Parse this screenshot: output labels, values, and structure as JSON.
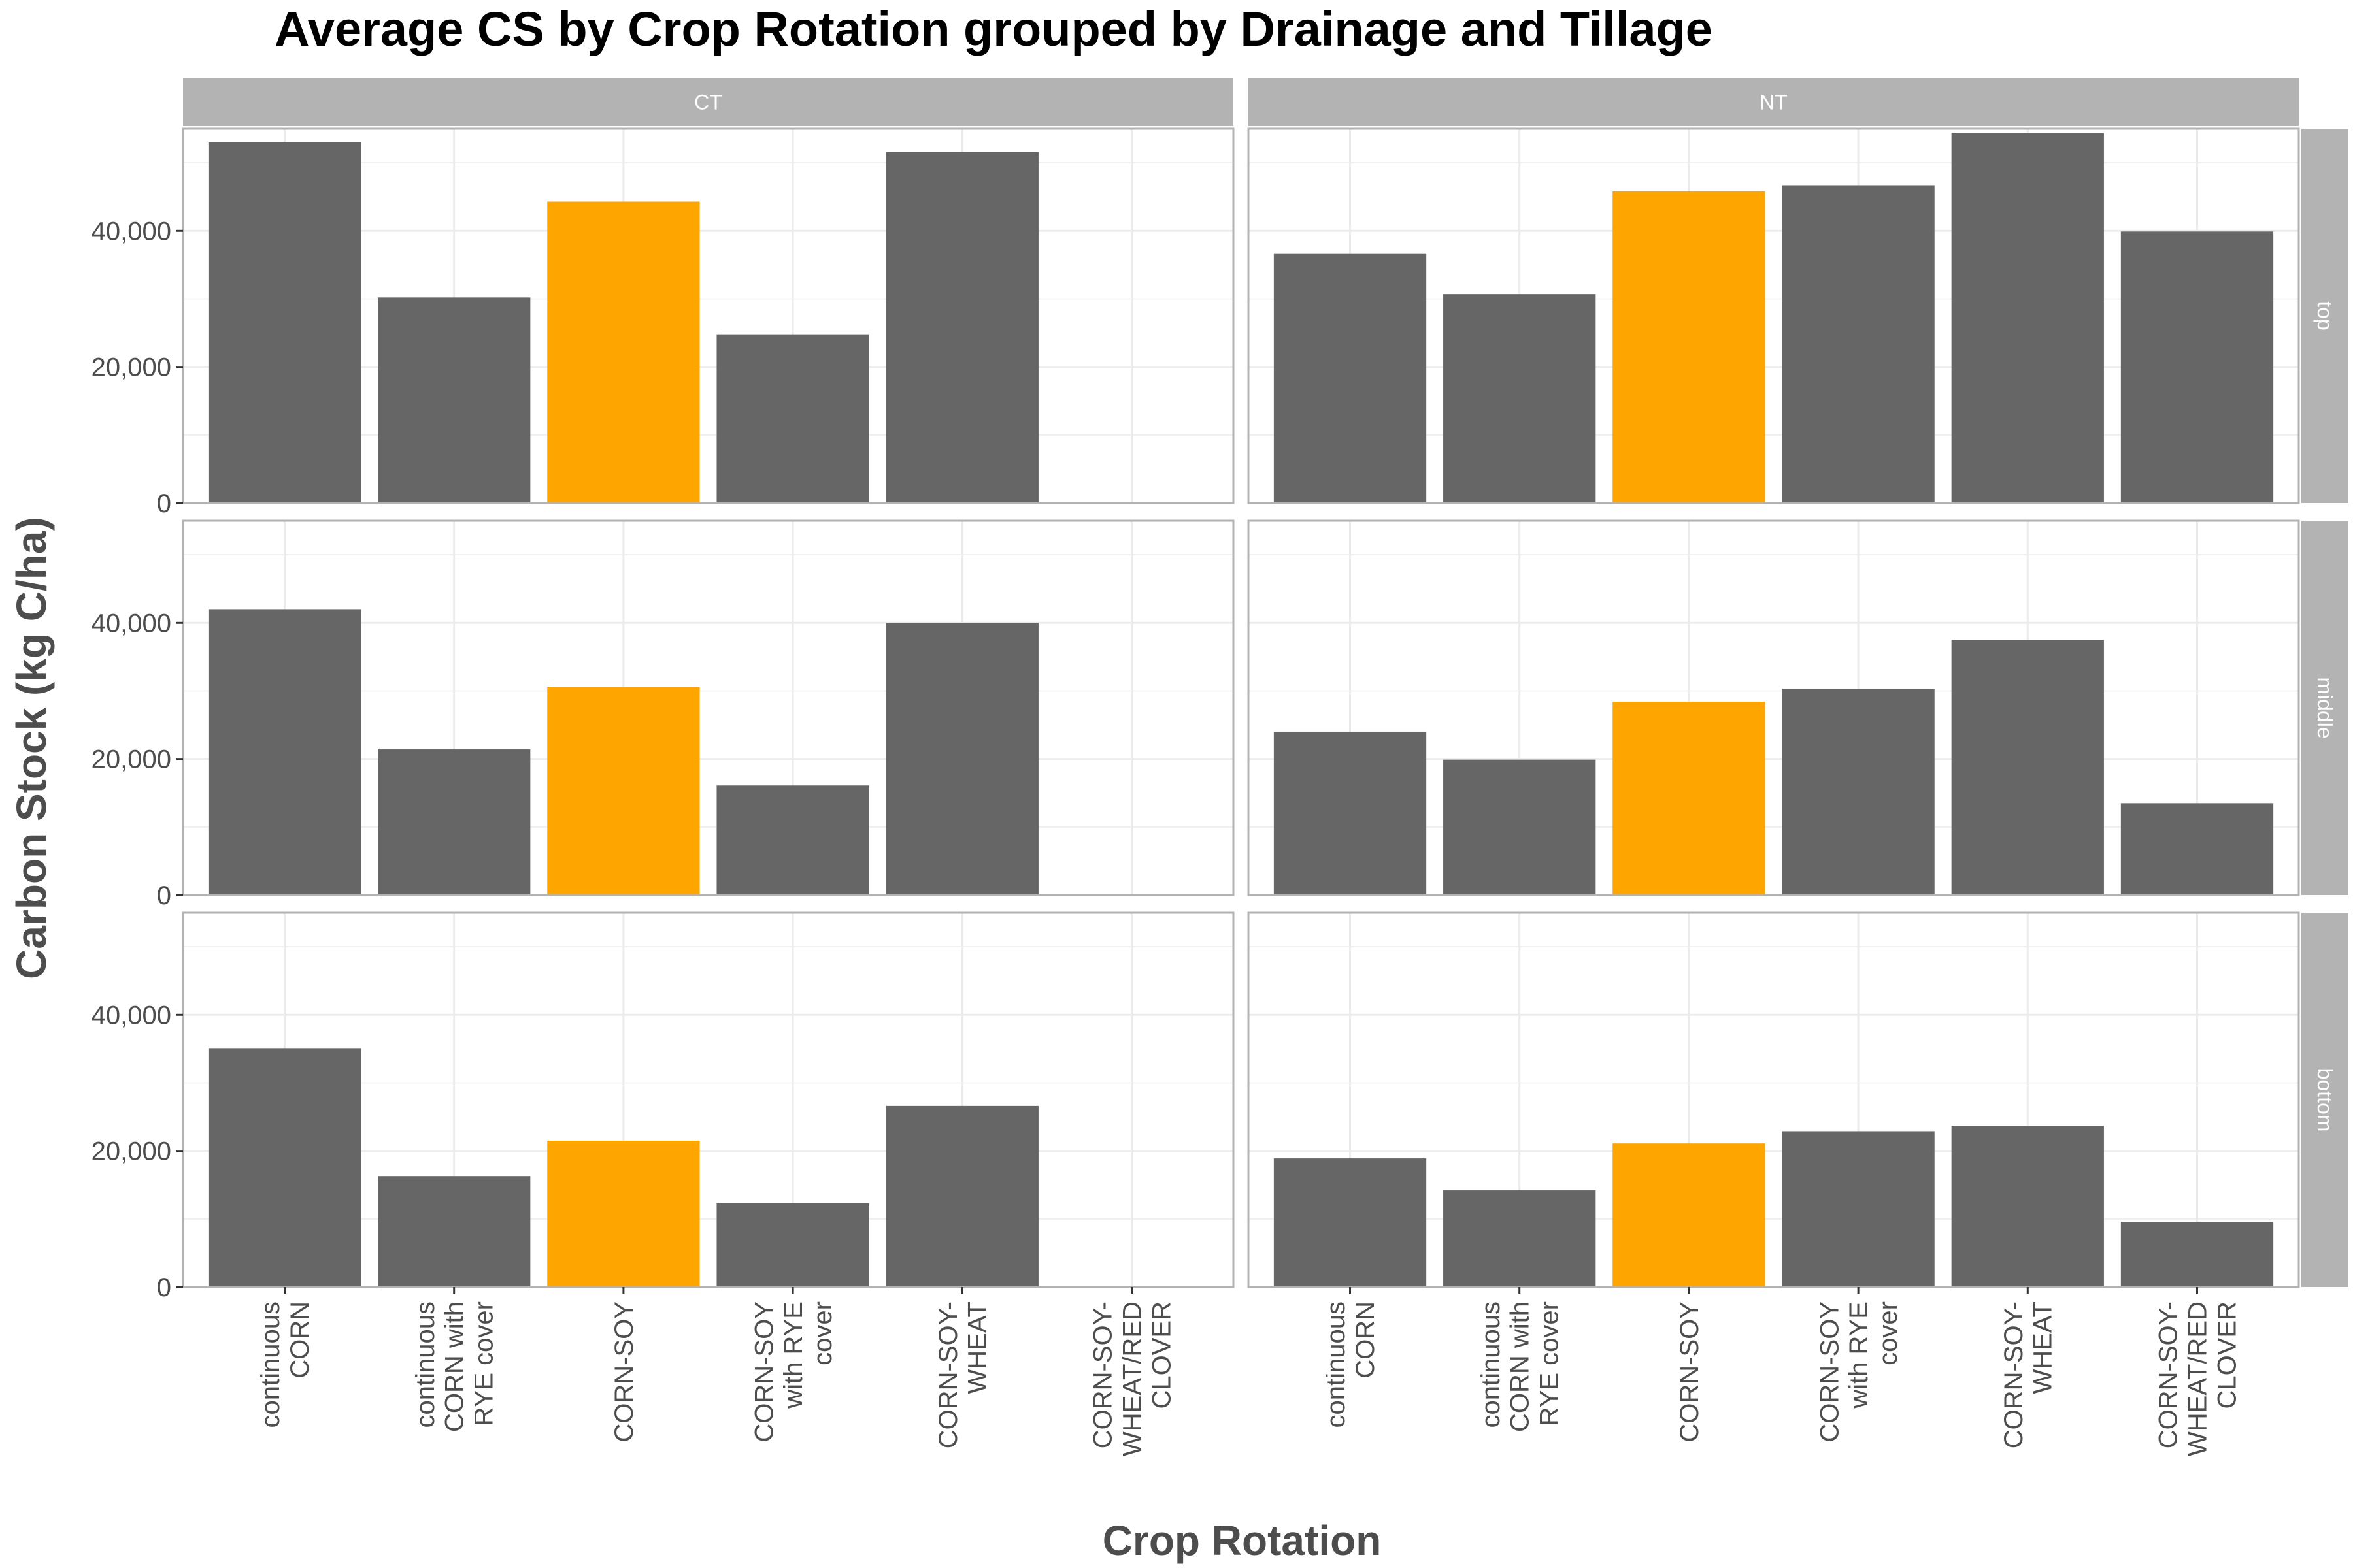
{
  "chart_data": {
    "type": "bar",
    "title": "Average CS by Crop Rotation grouped by Drainage and Tillage",
    "xlabel": "Crop Rotation",
    "ylabel": "Carbon Stock (kg C/ha)",
    "ylim": [
      0,
      55000
    ],
    "yticks": [
      0,
      20000,
      40000
    ],
    "ytick_labels": [
      "0",
      "20,000",
      "40,000"
    ],
    "grid": true,
    "legend": "none",
    "colors": {
      "default": "#666666",
      "highlight": "#FFA500",
      "strip": "#B3B3B3",
      "grid": "#EBEBEB",
      "border": "#B3B3B3"
    },
    "highlight_category": "CORN-SOY",
    "categories": [
      "continuous CORN",
      "continuous CORN with RYE cover",
      "CORN-SOY",
      "CORN-SOY with RYE cover",
      "CORN-SOY-WHEAT",
      "CORN-SOY-WHEAT/RED CLOVER"
    ],
    "category_tick_lines": [
      [
        "continuous",
        "CORN"
      ],
      [
        "continuous",
        "CORN with",
        "RYE cover"
      ],
      [
        "CORN-SOY"
      ],
      [
        "CORN-SOY",
        "with RYE",
        "cover"
      ],
      [
        "CORN-SOY-",
        "WHEAT"
      ],
      [
        "CORN-SOY-",
        "WHEAT/RED",
        "CLOVER"
      ]
    ],
    "col_facets": [
      "CT",
      "NT"
    ],
    "row_facets": [
      "top",
      "middle",
      "bottom"
    ],
    "panels": [
      {
        "col": "CT",
        "row": "top",
        "values": [
          53000,
          30200,
          44300,
          24800,
          51600,
          null
        ]
      },
      {
        "col": "NT",
        "row": "top",
        "values": [
          36600,
          30700,
          45800,
          46700,
          54400,
          39900
        ]
      },
      {
        "col": "CT",
        "row": "middle",
        "values": [
          42000,
          21400,
          30600,
          16100,
          40000,
          null
        ]
      },
      {
        "col": "NT",
        "row": "middle",
        "values": [
          24000,
          19900,
          28400,
          30300,
          37500,
          13500
        ]
      },
      {
        "col": "CT",
        "row": "bottom",
        "values": [
          35100,
          16300,
          21500,
          12300,
          26600,
          null
        ]
      },
      {
        "col": "NT",
        "row": "bottom",
        "values": [
          18900,
          14200,
          21100,
          22900,
          23700,
          9600
        ]
      }
    ]
  }
}
